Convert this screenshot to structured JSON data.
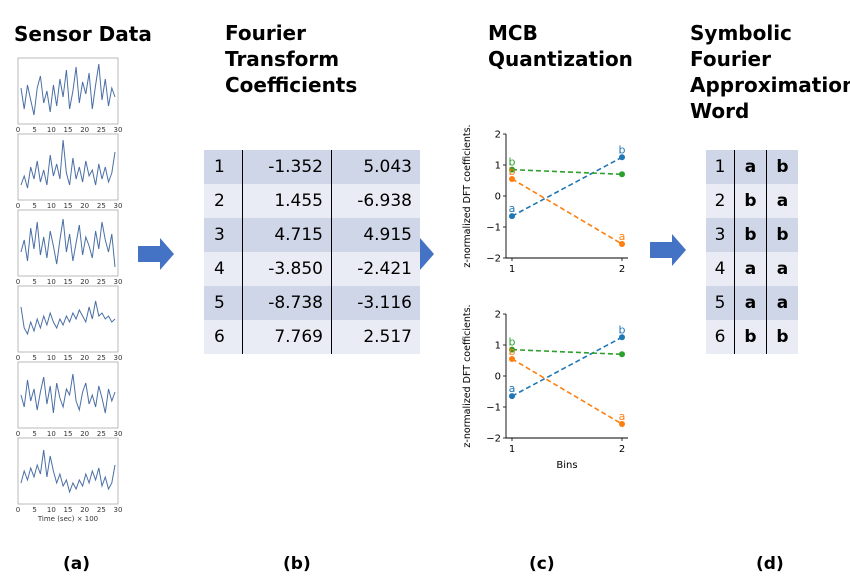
{
  "panels": {
    "a": {
      "title": "Sensor Data",
      "caption": "(a)"
    },
    "b": {
      "title_lines": [
        "Fourier",
        "Transform",
        "Coefficients"
      ],
      "caption": "(b)"
    },
    "c": {
      "title_lines": [
        "MCB",
        "Quantization"
      ],
      "caption": "(c)"
    },
    "d": {
      "title_lines": [
        "Symbolic",
        "Fourier",
        "Approximation",
        "Word"
      ],
      "caption": "(d)"
    }
  },
  "sensor_plots": {
    "x_ticks": [
      "0",
      "5",
      "10",
      "15",
      "20",
      "25",
      "30"
    ],
    "xlabel": "Time (sec) × 100",
    "line_color": "#4a6fa5",
    "series": [
      [
        0.55,
        0.2,
        0.6,
        0.35,
        0.1,
        0.55,
        0.75,
        0.3,
        0.5,
        0.15,
        0.6,
        0.25,
        0.7,
        0.4,
        0.85,
        0.2,
        0.5,
        0.9,
        0.3,
        0.65,
        0.45,
        0.8,
        0.2,
        0.6,
        0.95,
        0.35,
        0.7,
        0.25,
        0.55,
        0.4
      ],
      [
        0.2,
        0.35,
        0.15,
        0.5,
        0.3,
        0.6,
        0.25,
        0.45,
        0.2,
        0.7,
        0.35,
        0.55,
        0.3,
        0.95,
        0.4,
        0.2,
        0.65,
        0.3,
        0.5,
        0.25,
        0.6,
        0.35,
        0.45,
        0.2,
        0.55,
        0.3,
        0.5,
        0.25,
        0.4,
        0.75
      ],
      [
        0.35,
        0.55,
        0.2,
        0.75,
        0.4,
        0.85,
        0.3,
        0.6,
        0.25,
        0.7,
        0.45,
        0.15,
        0.55,
        0.9,
        0.35,
        0.65,
        0.2,
        0.5,
        0.8,
        0.3,
        0.6,
        0.45,
        0.25,
        0.7,
        0.4,
        0.85,
        0.55,
        0.35,
        0.65,
        0.1
      ],
      [
        0.7,
        0.35,
        0.25,
        0.45,
        0.3,
        0.5,
        0.35,
        0.55,
        0.4,
        0.6,
        0.45,
        0.35,
        0.5,
        0.4,
        0.55,
        0.45,
        0.6,
        0.5,
        0.65,
        0.55,
        0.45,
        0.7,
        0.5,
        0.8,
        0.55,
        0.6,
        0.5,
        0.55,
        0.45,
        0.5
      ],
      [
        0.5,
        0.3,
        0.75,
        0.4,
        0.6,
        0.25,
        0.55,
        0.8,
        0.35,
        0.65,
        0.2,
        0.7,
        0.45,
        0.3,
        0.6,
        0.5,
        0.85,
        0.4,
        0.25,
        0.55,
        0.7,
        0.35,
        0.5,
        0.3,
        0.65,
        0.45,
        0.2,
        0.6,
        0.4,
        0.55
      ],
      [
        0.3,
        0.5,
        0.35,
        0.55,
        0.4,
        0.6,
        0.45,
        0.85,
        0.4,
        0.75,
        0.5,
        0.3,
        0.45,
        0.25,
        0.35,
        0.15,
        0.3,
        0.2,
        0.35,
        0.25,
        0.45,
        0.3,
        0.5,
        0.35,
        0.55,
        0.25,
        0.4,
        0.2,
        0.3,
        0.6
      ]
    ]
  },
  "coefficients": [
    {
      "idx": "1",
      "c1": "-1.352",
      "c2": "5.043"
    },
    {
      "idx": "2",
      "c1": "1.455",
      "c2": "-6.938"
    },
    {
      "idx": "3",
      "c1": "4.715",
      "c2": "4.915"
    },
    {
      "idx": "4",
      "c1": "-3.850",
      "c2": "-2.421"
    },
    {
      "idx": "5",
      "c1": "-8.738",
      "c2": "-3.116"
    },
    {
      "idx": "6",
      "c1": "7.769",
      "c2": "2.517"
    }
  ],
  "words": [
    {
      "idx": "1",
      "s1": "a",
      "s2": "b"
    },
    {
      "idx": "2",
      "s1": "b",
      "s2": "a"
    },
    {
      "idx": "3",
      "s1": "b",
      "s2": "b"
    },
    {
      "idx": "4",
      "s1": "a",
      "s2": "a"
    },
    {
      "idx": "5",
      "s1": "a",
      "s2": "a"
    },
    {
      "idx": "6",
      "s1": "b",
      "s2": "b"
    }
  ],
  "colors": {
    "table_dark": "#cfd6e7",
    "table_light": "#e9ecf4",
    "arrow": "#4472c4"
  },
  "chart_data": [
    {
      "type": "line",
      "ylabel": "z-normalized DFT coefficients.",
      "xlabel": "",
      "x": [
        1,
        2
      ],
      "x_ticks": [
        "1",
        "2"
      ],
      "y_ticks": [
        "2",
        "1",
        "0",
        "−1",
        "−2"
      ],
      "ylim": [
        -2,
        2
      ],
      "series": [
        {
          "color": "#1f77b4",
          "values": [
            -0.65,
            1.25
          ],
          "labels": [
            "a",
            "b"
          ]
        },
        {
          "color": "#2ca02c",
          "values": [
            0.85,
            0.7
          ],
          "labels": [
            "b",
            ""
          ]
        },
        {
          "color": "#ff7f0e",
          "values": [
            0.55,
            -1.55
          ],
          "labels": [
            "b",
            "a"
          ]
        }
      ]
    },
    {
      "type": "line",
      "ylabel": "z-normalized DFT coefficients.",
      "xlabel": "Bins",
      "x": [
        1,
        2
      ],
      "x_ticks": [
        "1",
        "2"
      ],
      "y_ticks": [
        "2",
        "1",
        "0",
        "−1",
        "−2"
      ],
      "ylim": [
        -2,
        2
      ],
      "series": [
        {
          "color": "#1f77b4",
          "values": [
            -0.65,
            1.25
          ],
          "labels": [
            "a",
            "b"
          ]
        },
        {
          "color": "#2ca02c",
          "values": [
            0.85,
            0.7
          ],
          "labels": [
            "b",
            ""
          ]
        },
        {
          "color": "#ff7f0e",
          "values": [
            0.55,
            -1.55
          ],
          "labels": [
            "b",
            "a"
          ]
        }
      ]
    }
  ]
}
